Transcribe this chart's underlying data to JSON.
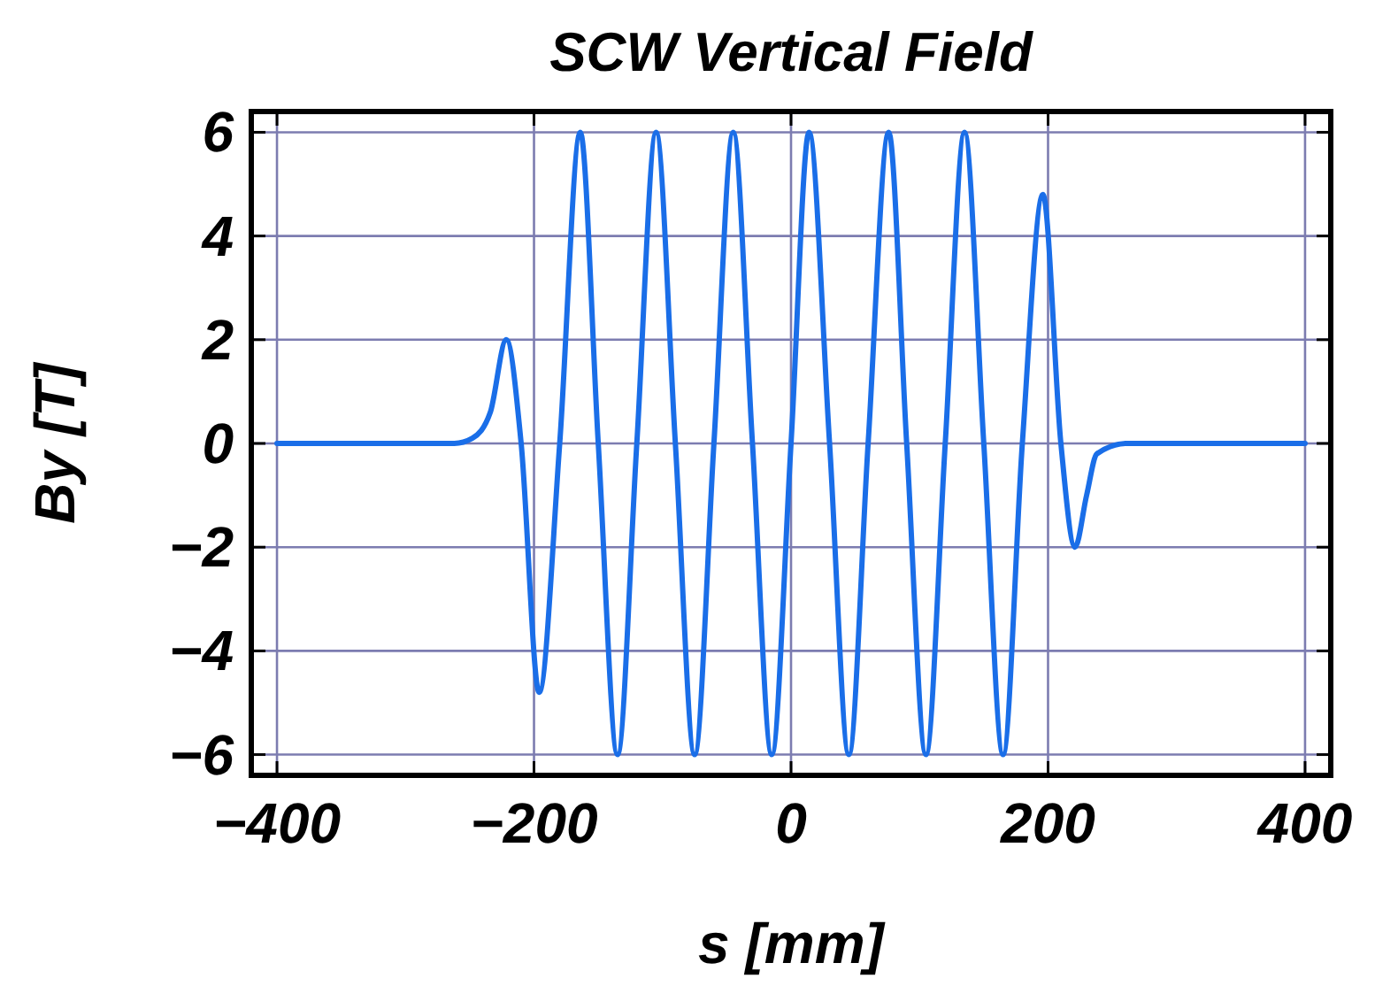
{
  "chart_data": {
    "type": "line",
    "title": "SCW Vertical Field",
    "xlabel": "s [mm]",
    "ylabel": "By [T]",
    "xlim": [
      -420,
      420
    ],
    "ylim": [
      -6.4,
      6.4
    ],
    "xticks": [
      -400,
      -200,
      0,
      200,
      400
    ],
    "yticks": [
      -6,
      -4,
      -2,
      0,
      2,
      4,
      6
    ],
    "grid": true,
    "series": [
      {
        "color": "#1a6ee8",
        "x": [
          -400,
          -262,
          -248,
          -234,
          -221.5,
          -210,
          -196,
          -180,
          -164,
          -150,
          -135,
          -120,
          -105,
          -90,
          -75,
          -60,
          -45,
          -30,
          -15,
          0,
          14,
          30,
          45,
          60,
          76,
          90,
          105,
          120,
          135,
          150,
          165,
          180,
          196,
          210,
          221,
          230,
          238,
          261,
          400
        ],
        "values": [
          0,
          0,
          0.1,
          0.6,
          2.0,
          0,
          -4.8,
          0,
          6.0,
          0,
          -6.0,
          0,
          6.0,
          0,
          -6.0,
          0,
          6.0,
          0,
          -6.0,
          0,
          6.0,
          0,
          -6.0,
          0,
          6.0,
          0,
          -6.0,
          0,
          6.0,
          0,
          -6.0,
          0,
          4.8,
          0,
          -2.0,
          -1.0,
          -0.2,
          0,
          0
        ]
      }
    ]
  }
}
